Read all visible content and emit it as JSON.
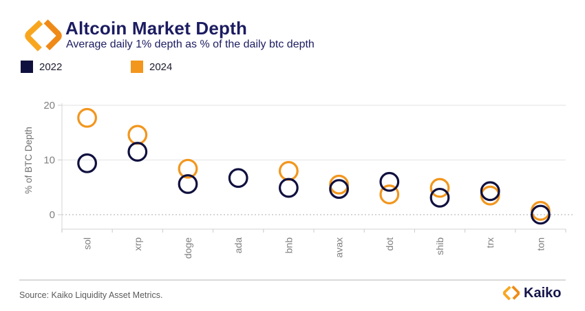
{
  "header": {
    "title": "Altcoin Market Depth",
    "subtitle": "Average daily 1% depth as % of the daily btc depth"
  },
  "legend": [
    {
      "label": "2022",
      "color": "#10103F"
    },
    {
      "label": "2024",
      "color": "#F2961D"
    }
  ],
  "chart_data": {
    "type": "scatter",
    "title": "Altcoin Market Depth",
    "subtitle": "Average daily 1% depth as % of the daily btc depth",
    "categories": [
      "sol",
      "xrp",
      "doge",
      "ada",
      "bnb",
      "avax",
      "dot",
      "shib",
      "trx",
      "ton"
    ],
    "series": [
      {
        "name": "2022",
        "color": "#10103F",
        "values": [
          9.4,
          11.5,
          5.6,
          6.7,
          4.9,
          4.7,
          6.0,
          3.1,
          4.3,
          0.0
        ]
      },
      {
        "name": "2024",
        "color": "#F2961D",
        "values": [
          17.7,
          14.6,
          8.4,
          null,
          8.0,
          5.5,
          3.7,
          4.9,
          3.5,
          0.7
        ]
      }
    ],
    "xlabel": "",
    "ylabel": "% of BTC Depth",
    "yticks": [
      0,
      10,
      20
    ],
    "ylim": [
      -2.6,
      20.5
    ],
    "grid": "horizontal",
    "zero_line_style": "dotted",
    "legend_position": "top-left",
    "marker": "open-circle"
  },
  "footer": {
    "source": "Source: Kaiko Liquidity Asset Metrics.",
    "brand": "Kaiko"
  },
  "colors": {
    "navy": "#10103F",
    "orange": "#F2961D",
    "orange_light": "#F9A61F",
    "orange_dark": "#EF8A18",
    "title_navy": "#1C1C61",
    "axis_gray": "#7F7F7F"
  }
}
